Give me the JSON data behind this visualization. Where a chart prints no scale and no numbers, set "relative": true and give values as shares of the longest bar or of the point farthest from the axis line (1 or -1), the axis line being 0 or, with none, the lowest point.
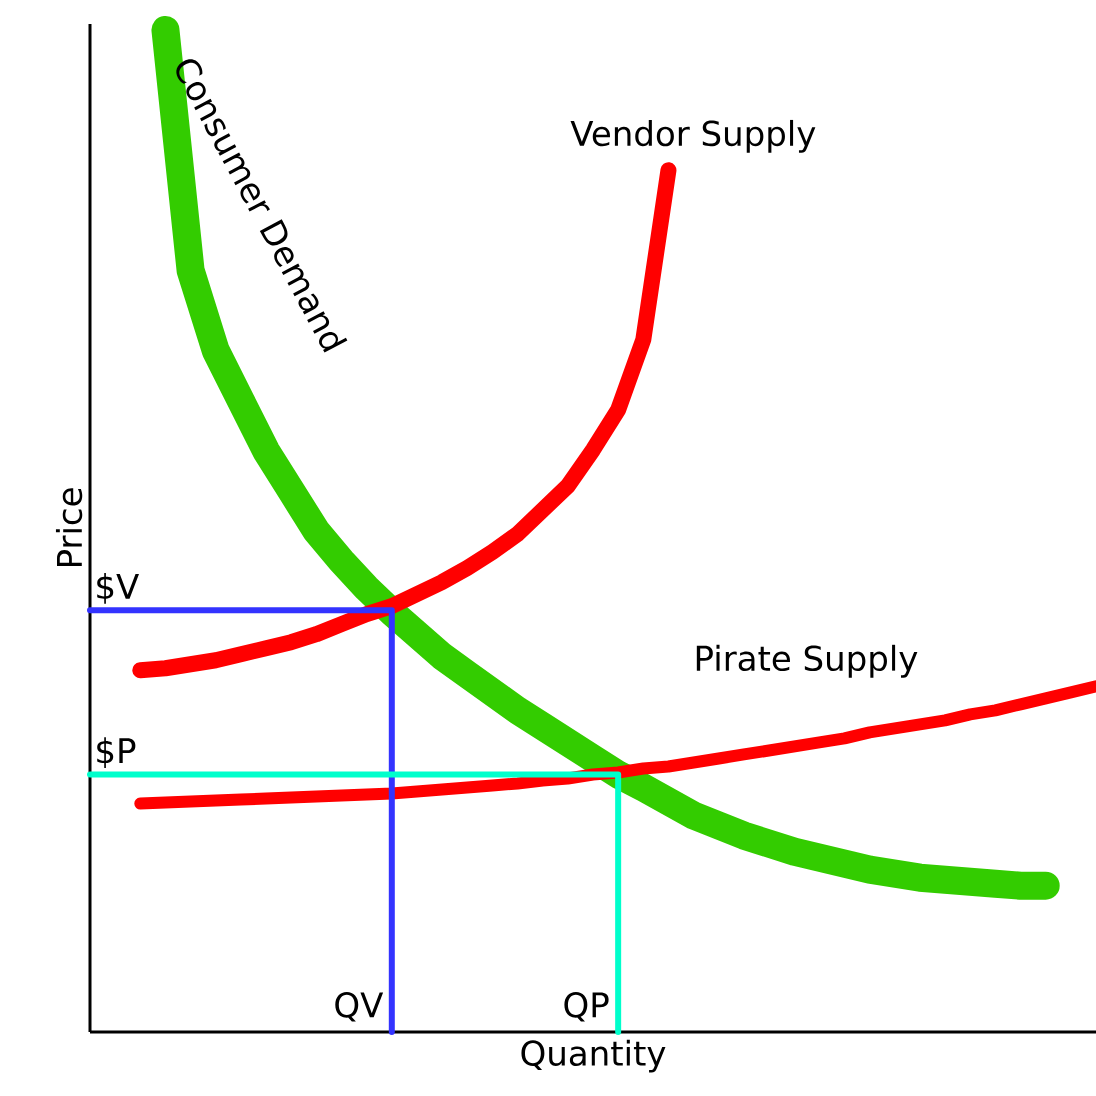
{
  "chart_data": {
    "type": "line",
    "relative": true,
    "xlabel": "Quantity",
    "ylabel": "Price",
    "categories": [
      null,
      null,
      null,
      null,
      null,
      null,
      null,
      null,
      null,
      null,
      null,
      null,
      null,
      null,
      null,
      null,
      null,
      null,
      null,
      null,
      null,
      null,
      null,
      null,
      null,
      null,
      null,
      null,
      null,
      null,
      null,
      null,
      null,
      null,
      null,
      null,
      null,
      null,
      null,
      null,
      null
    ],
    "series": [
      {
        "name": "Consumer Demand",
        "color": "#33cc00",
        "values": [
          null,
          null,
          null,
          1.0,
          0.76,
          0.68,
          0.63,
          0.58,
          0.54,
          0.5,
          0.47,
          0.443,
          0.419,
          0.397,
          0.375,
          0.357,
          0.339,
          0.321,
          0.305,
          0.289,
          0.273,
          0.257,
          0.244,
          0.23,
          0.216,
          0.206,
          0.196,
          0.188,
          0.18,
          0.174,
          0.168,
          0.162,
          0.158,
          0.154,
          0.152,
          0.15,
          0.148,
          0.146,
          0.146,
          null,
          null
        ]
      },
      {
        "name": "Vendor Supply",
        "color": "#ff0000",
        "values": [
          null,
          null,
          0.361,
          0.363,
          0.367,
          0.371,
          0.377,
          0.383,
          0.389,
          0.397,
          0.407,
          0.417,
          0.425,
          0.437,
          0.449,
          0.463,
          0.479,
          0.497,
          0.521,
          0.545,
          0.581,
          0.621,
          0.691,
          0.86,
          null,
          null,
          null,
          null,
          null,
          null,
          null,
          null,
          null,
          null,
          null,
          null,
          null,
          null,
          null,
          null,
          null
        ]
      },
      {
        "name": "Pirate Supply",
        "color": "#ff0000",
        "values": [
          null,
          null,
          0.228,
          0.229,
          0.23,
          0.231,
          0.232,
          0.233,
          0.234,
          0.235,
          0.236,
          0.237,
          0.238,
          0.24,
          0.242,
          0.244,
          0.246,
          0.248,
          0.251,
          0.253,
          0.257,
          0.259,
          0.263,
          0.265,
          0.269,
          0.273,
          0.277,
          0.281,
          0.285,
          0.289,
          0.293,
          0.299,
          0.303,
          0.307,
          0.311,
          0.317,
          0.321,
          0.327,
          0.333,
          0.339,
          0.345
        ]
      },
      {
        "type": "step",
        "color": "#3333ff",
        "values": [
          0.421,
          0.421,
          0.421,
          0.421,
          0.421,
          0.421,
          0.421,
          0.421,
          0.421,
          0.421,
          0.421,
          0.421,
          0,
          null,
          null,
          null,
          null,
          null,
          null,
          null,
          null,
          null,
          null,
          null,
          null,
          null,
          null,
          null,
          null,
          null,
          null,
          null,
          null,
          null,
          null,
          null,
          null,
          null,
          null,
          null,
          null
        ]
      },
      {
        "type": "step",
        "color": "#00ffcc",
        "values": [
          0.257,
          0.257,
          0.257,
          0.257,
          0.257,
          0.257,
          0.257,
          0.257,
          0.257,
          0.257,
          0.257,
          0.257,
          0.257,
          0.257,
          0.257,
          0.257,
          0.257,
          0.257,
          0.257,
          0.257,
          0.257,
          0,
          null,
          null,
          null,
          null,
          null,
          null,
          null,
          null,
          null,
          null,
          null,
          null,
          null,
          null,
          null,
          null,
          null,
          null,
          null
        ]
      }
    ],
    "annotations": [
      "$V",
      "$P",
      "QV",
      "QP"
    ]
  }
}
